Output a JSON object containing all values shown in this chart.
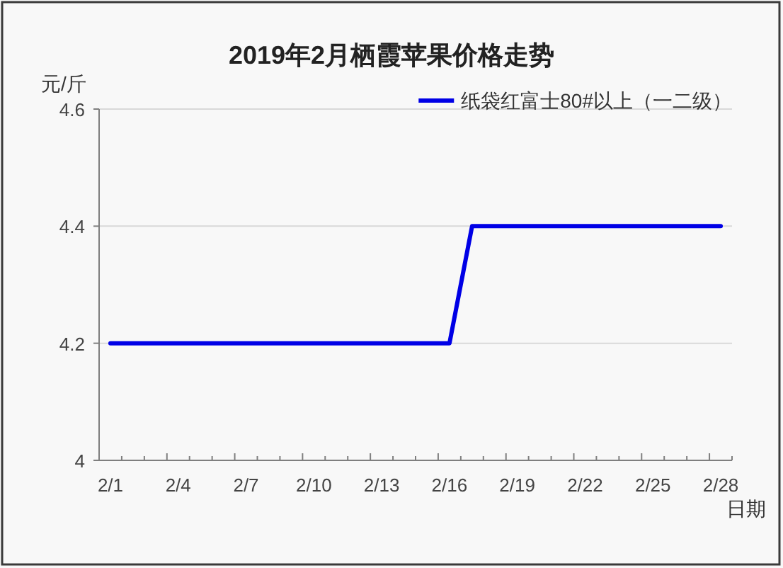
{
  "chart_data": {
    "type": "line",
    "title": "2019年2月栖霞苹果价格走势",
    "ylabel": "元/斤",
    "xlabel": "日期",
    "categories": [
      "2/1",
      null,
      null,
      "2/4",
      null,
      null,
      "2/7",
      null,
      null,
      "2/10",
      null,
      null,
      "2/13",
      null,
      null,
      "2/16",
      null,
      null,
      "2/19",
      null,
      null,
      "2/22",
      null,
      null,
      "2/25",
      null,
      null,
      "2/28"
    ],
    "series": [
      {
        "name": "纸袋红富士80#以上（一二级）",
        "color": "#0000e6",
        "values": [
          4.2,
          4.2,
          4.2,
          4.2,
          4.2,
          4.2,
          4.2,
          4.2,
          4.2,
          4.2,
          4.2,
          4.2,
          4.2,
          4.2,
          4.2,
          4.2,
          4.4,
          4.4,
          4.4,
          4.4,
          4.4,
          4.4,
          4.4,
          4.4,
          4.4,
          4.4,
          4.4,
          4.4
        ]
      }
    ],
    "ylim": [
      4,
      4.6
    ],
    "yticks": [
      4,
      4.2,
      4.4,
      4.6
    ],
    "grid": "y",
    "legend": "top right",
    "line_style": "solid"
  }
}
